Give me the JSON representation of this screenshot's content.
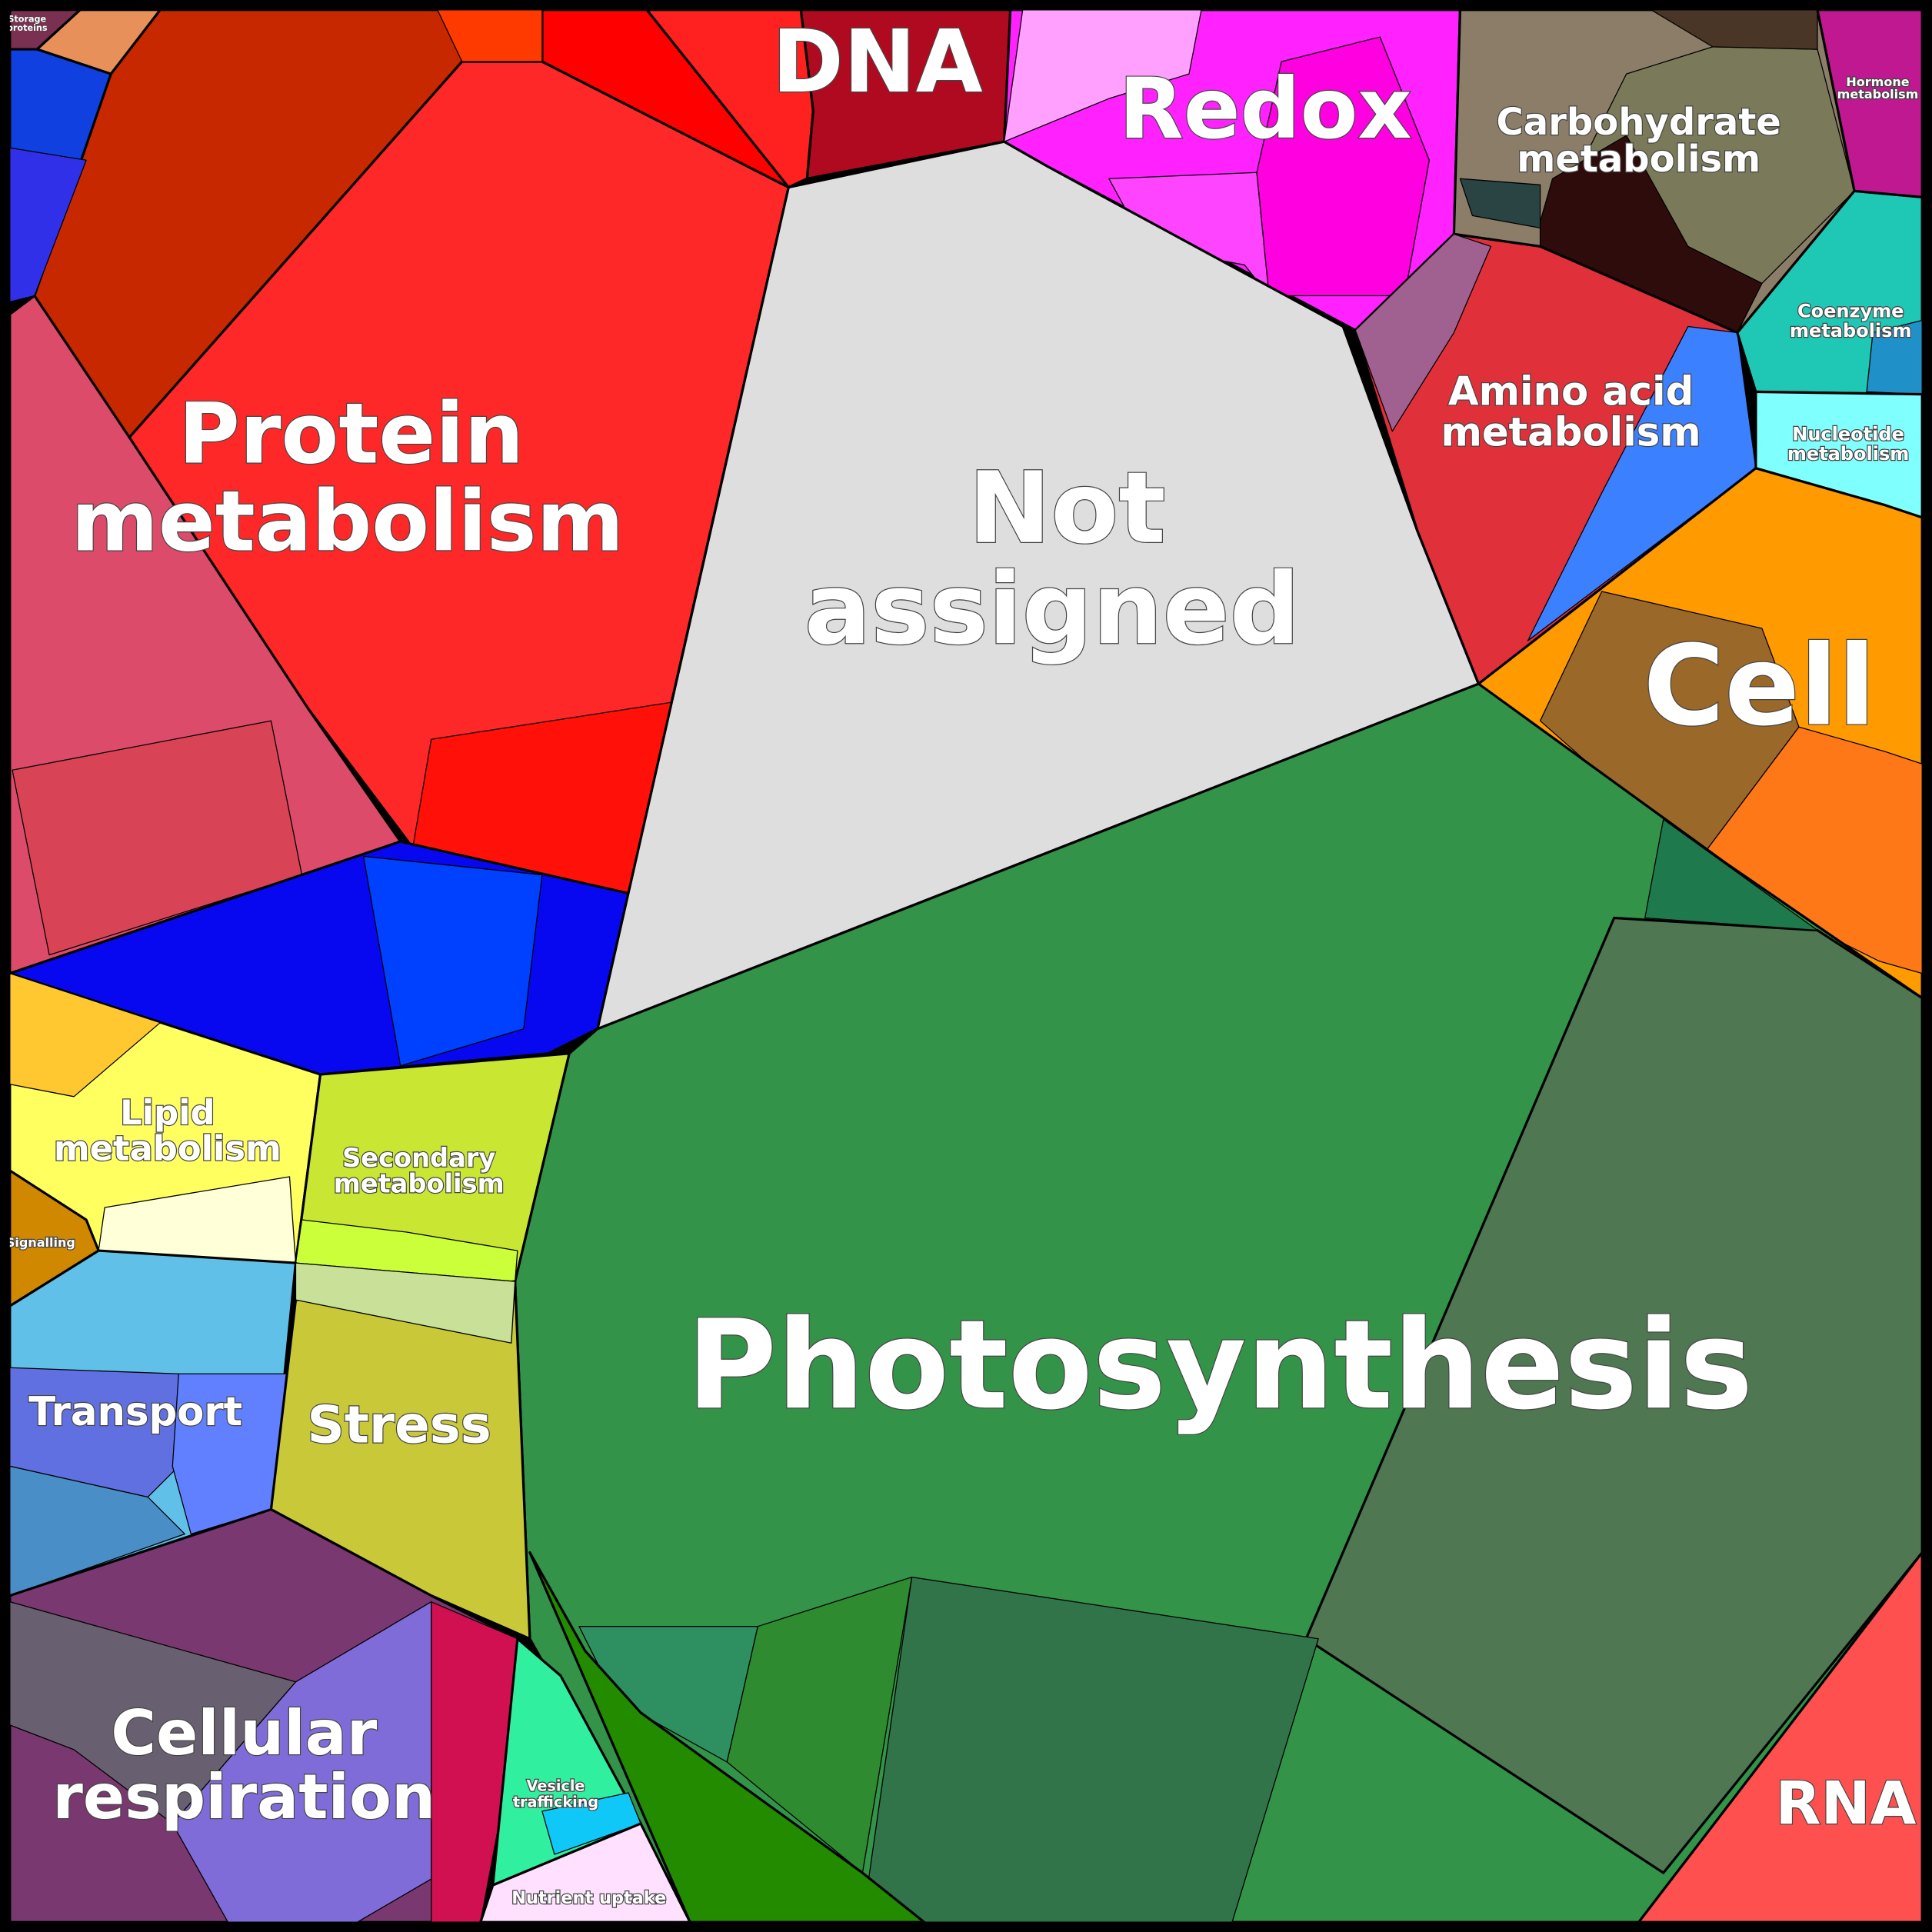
{
  "cells": [
    {
      "label": [
        "Protein",
        "metabolism"
      ]
    },
    {
      "label": [
        "Not",
        "assigned"
      ]
    },
    {
      "label": [
        "Photosynthesis"
      ]
    },
    {
      "label": [
        "DNA"
      ]
    },
    {
      "label": [
        "Redox"
      ]
    },
    {
      "label": [
        "Carbohydrate",
        "metabolism"
      ]
    },
    {
      "label": [
        "Amino acid",
        "metabolism"
      ]
    },
    {
      "label": [
        "Coenzyme",
        "metabolism"
      ]
    },
    {
      "label": [
        "Hormone",
        "metabolism"
      ]
    },
    {
      "label": [
        "Nucleotide",
        "metabolism"
      ]
    },
    {
      "label": [
        "Cell"
      ]
    },
    {
      "label": [
        "RNA"
      ]
    },
    {
      "label": [
        "Lipid",
        "metabolism"
      ]
    },
    {
      "label": [
        "Signalling"
      ]
    },
    {
      "label": [
        "Secondary",
        "metabolism"
      ]
    },
    {
      "label": [
        "Transport"
      ]
    },
    {
      "label": [
        "Stress"
      ]
    },
    {
      "label": [
        "Cellular",
        "respiration"
      ]
    },
    {
      "label": [
        "Vesicle",
        "trafficking"
      ]
    },
    {
      "label": [
        "Nutrient uptake"
      ]
    },
    {
      "label": [
        "Storage",
        "proteins"
      ]
    }
  ]
}
